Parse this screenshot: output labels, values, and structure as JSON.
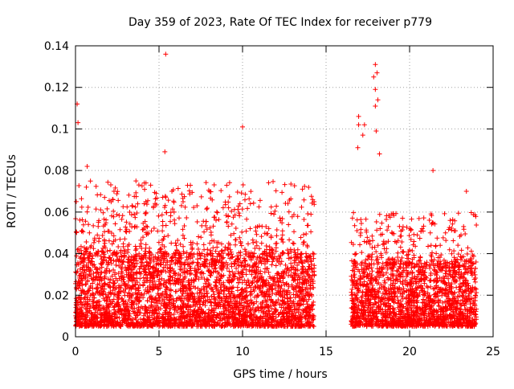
{
  "chart_data": {
    "type": "scatter",
    "title": "Day 359 of 2023, Rate Of TEC Index for receiver p779",
    "xlabel": "GPS time / hours",
    "ylabel": "ROTI / TECUs",
    "xlim": [
      0,
      25
    ],
    "ylim": [
      0,
      0.14
    ],
    "xticks": [
      0,
      5,
      10,
      15,
      20,
      25
    ],
    "xtick_labels": [
      "0",
      "5",
      "10",
      "15",
      "20",
      "25"
    ],
    "yticks": [
      0,
      0.02,
      0.04,
      0.06,
      0.08,
      0.1,
      0.12,
      0.14
    ],
    "ytick_labels": [
      "0",
      "0.02",
      "0.04",
      "0.06",
      "0.08",
      "0.1",
      "0.12",
      "0.14"
    ],
    "grid": true,
    "marker": "+",
    "color": "#ff0000",
    "notable_points": [
      {
        "x": 0.1,
        "y": 0.112
      },
      {
        "x": 0.15,
        "y": 0.103
      },
      {
        "x": 0.7,
        "y": 0.082
      },
      {
        "x": 0.65,
        "y": 0.072
      },
      {
        "x": 5.4,
        "y": 0.136
      },
      {
        "x": 5.35,
        "y": 0.089
      },
      {
        "x": 10.0,
        "y": 0.101
      },
      {
        "x": 14.2,
        "y": 0.066
      },
      {
        "x": 17.95,
        "y": 0.131
      },
      {
        "x": 18.05,
        "y": 0.127
      },
      {
        "x": 17.85,
        "y": 0.125
      },
      {
        "x": 17.95,
        "y": 0.119
      },
      {
        "x": 18.1,
        "y": 0.114
      },
      {
        "x": 17.95,
        "y": 0.111
      },
      {
        "x": 16.95,
        "y": 0.106
      },
      {
        "x": 17.3,
        "y": 0.102
      },
      {
        "x": 16.95,
        "y": 0.102
      },
      {
        "x": 18.0,
        "y": 0.099
      },
      {
        "x": 17.2,
        "y": 0.097
      },
      {
        "x": 16.9,
        "y": 0.091
      },
      {
        "x": 18.2,
        "y": 0.088
      },
      {
        "x": 21.4,
        "y": 0.08
      },
      {
        "x": 23.4,
        "y": 0.07
      }
    ],
    "data_segments": [
      {
        "x_start": 0.0,
        "x_end": 14.3,
        "typical_range": [
          0.005,
          0.04
        ],
        "spread_range": [
          0.04,
          0.075
        ]
      },
      {
        "x_start": 16.5,
        "x_end": 24.0,
        "typical_range": [
          0.005,
          0.035
        ],
        "spread_range": [
          0.035,
          0.06
        ]
      }
    ]
  }
}
